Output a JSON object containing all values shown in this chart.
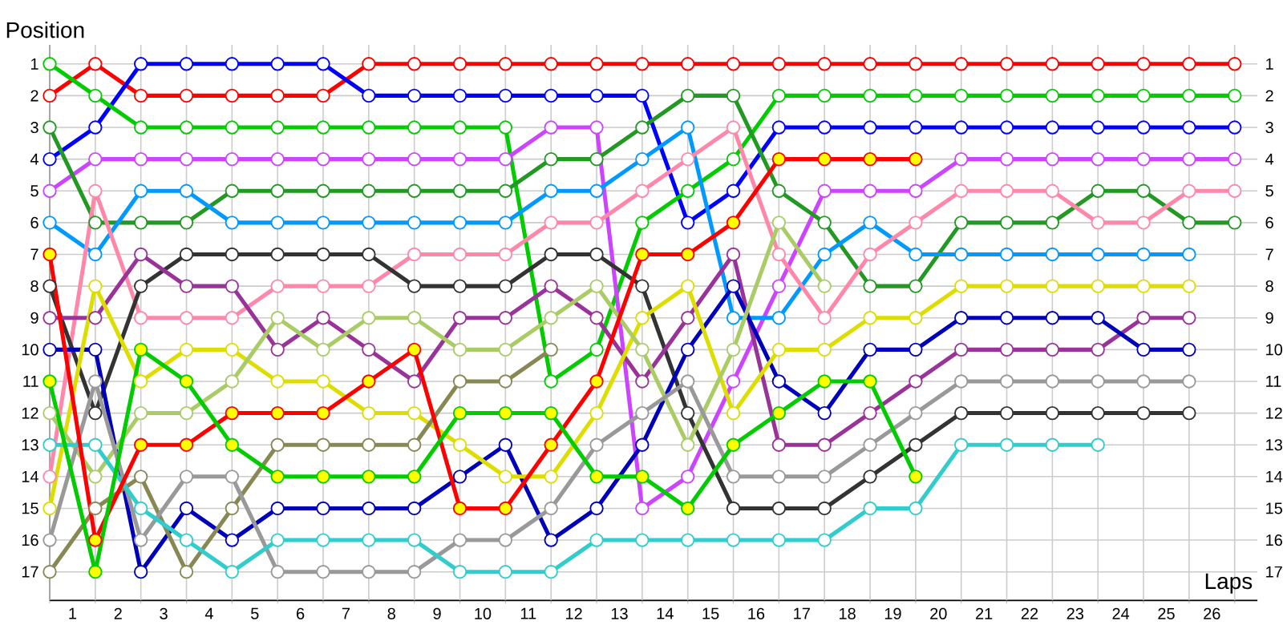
{
  "chart_data": {
    "type": "line",
    "xlabel": "Laps",
    "ylabel": "Position",
    "marker": "circle",
    "line_style": "solid",
    "grid": true,
    "x": [
      0,
      1,
      2,
      3,
      4,
      5,
      6,
      7,
      8,
      9,
      10,
      11,
      12,
      13,
      14,
      15,
      16,
      17,
      18,
      19,
      20,
      21,
      22,
      23,
      24,
      25,
      26
    ],
    "xlim": [
      0,
      26.5
    ],
    "xticks": [
      {
        "value": 0,
        "label": null
      },
      {
        "value": 0.5,
        "label": "1"
      },
      {
        "value": 1,
        "label": null
      },
      {
        "value": 1.5,
        "label": "2"
      },
      {
        "value": 2,
        "label": null
      },
      {
        "value": 2.5,
        "label": "3"
      },
      {
        "value": 3,
        "label": null
      },
      {
        "value": 3.5,
        "label": "4"
      },
      {
        "value": 4,
        "label": null
      },
      {
        "value": 4.5,
        "label": "5"
      },
      {
        "value": 5,
        "label": null
      },
      {
        "value": 5.5,
        "label": "6"
      },
      {
        "value": 6,
        "label": null
      },
      {
        "value": 6.5,
        "label": "7"
      },
      {
        "value": 7,
        "label": null
      },
      {
        "value": 7.5,
        "label": "8"
      },
      {
        "value": 8,
        "label": null
      },
      {
        "value": 8.5,
        "label": "9"
      },
      {
        "value": 9,
        "label": null
      },
      {
        "value": 9.5,
        "label": "10"
      },
      {
        "value": 10,
        "label": null
      },
      {
        "value": 10.5,
        "label": "11"
      },
      {
        "value": 11,
        "label": null
      },
      {
        "value": 11.5,
        "label": "12"
      },
      {
        "value": 12,
        "label": null
      },
      {
        "value": 12.5,
        "label": "13"
      },
      {
        "value": 13,
        "label": null
      },
      {
        "value": 13.5,
        "label": "14"
      },
      {
        "value": 14,
        "label": null
      },
      {
        "value": 14.5,
        "label": "15"
      },
      {
        "value": 15,
        "label": null
      },
      {
        "value": 15.5,
        "label": "16"
      },
      {
        "value": 16,
        "label": null
      },
      {
        "value": 16.5,
        "label": "17"
      },
      {
        "value": 17,
        "label": null
      },
      {
        "value": 17.5,
        "label": "18"
      },
      {
        "value": 18,
        "label": null
      },
      {
        "value": 18.5,
        "label": "19"
      },
      {
        "value": 19,
        "label": null
      },
      {
        "value": 19.5,
        "label": "20"
      },
      {
        "value": 20,
        "label": null
      },
      {
        "value": 20.5,
        "label": "21"
      },
      {
        "value": 21,
        "label": null
      },
      {
        "value": 21.5,
        "label": "22"
      },
      {
        "value": 22,
        "label": null
      },
      {
        "value": 22.5,
        "label": "23"
      },
      {
        "value": 23,
        "label": null
      },
      {
        "value": 23.5,
        "label": "24"
      },
      {
        "value": 24,
        "label": null
      },
      {
        "value": 24.5,
        "label": "25"
      },
      {
        "value": 25,
        "label": null
      },
      {
        "value": 25.5,
        "label": "26"
      },
      {
        "value": 26,
        "label": null
      }
    ],
    "ylim": [
      17.9,
      0.4
    ],
    "yticks": [
      1,
      2,
      3,
      4,
      5,
      6,
      7,
      8,
      9,
      10,
      11,
      12,
      13,
      14,
      15,
      16,
      17
    ],
    "y2lim": [
      17.9,
      0.4
    ],
    "y2ticks": [
      1,
      2,
      3,
      4,
      5,
      6,
      7,
      8,
      9,
      10,
      11,
      12,
      13,
      14,
      15,
      16,
      17
    ],
    "series": [
      {
        "color": "#ff0000",
        "values": [
          2,
          1,
          2,
          2,
          2,
          2,
          2,
          1,
          1,
          1,
          1,
          1,
          1,
          1,
          1,
          1,
          1,
          1,
          1,
          1,
          1,
          1,
          1,
          1,
          1,
          1,
          1
        ]
      },
      {
        "color": "#0000ff",
        "values": [
          4,
          3,
          1,
          1,
          1,
          1,
          1,
          2,
          2,
          2,
          2,
          2,
          2,
          2,
          6,
          5,
          3,
          3,
          3,
          3,
          3,
          3,
          3,
          3,
          3,
          3,
          3
        ]
      },
      {
        "color": "#00cc00",
        "values": [
          1,
          2,
          3,
          3,
          3,
          3,
          3,
          3,
          3,
          3,
          3,
          11,
          10,
          6,
          5,
          4,
          2,
          2,
          2,
          2,
          2,
          2,
          2,
          2,
          2,
          2,
          2
        ]
      },
      {
        "color": "#cc44ff",
        "values": [
          5,
          4,
          4,
          4,
          4,
          4,
          4,
          4,
          4,
          4,
          4,
          3,
          3,
          15,
          14,
          11,
          8,
          5,
          5,
          5,
          4,
          4,
          4,
          4,
          4,
          4,
          4
        ]
      },
      {
        "color": "#229922",
        "values": [
          3,
          6,
          6,
          6,
          5,
          5,
          5,
          5,
          5,
          5,
          5,
          4,
          4,
          3,
          2,
          2,
          5,
          6,
          8,
          8,
          6,
          6,
          6,
          5,
          5,
          6,
          6
        ]
      },
      {
        "color": "#0099ff",
        "values": [
          6,
          7,
          5,
          5,
          6,
          6,
          6,
          6,
          6,
          6,
          6,
          5,
          5,
          4,
          3,
          9,
          9,
          7,
          6,
          7,
          7,
          7,
          7,
          7,
          7,
          7,
          null
        ]
      },
      {
        "color": "#ff88aa",
        "values": [
          14,
          5,
          9,
          9,
          9,
          8,
          8,
          8,
          7,
          7,
          7,
          6,
          6,
          5,
          4,
          3,
          7,
          9,
          7,
          6,
          5,
          5,
          5,
          6,
          6,
          5,
          5
        ]
      },
      {
        "color": "#333333",
        "values": [
          8,
          12,
          8,
          7,
          7,
          7,
          7,
          7,
          8,
          8,
          8,
          7,
          7,
          8,
          12,
          15,
          15,
          15,
          14,
          13,
          12,
          12,
          12,
          12,
          12,
          12,
          null
        ]
      },
      {
        "color": "#993399",
        "values": [
          9,
          9,
          7,
          8,
          8,
          10,
          9,
          10,
          11,
          9,
          9,
          8,
          9,
          11,
          9,
          7,
          13,
          13,
          12,
          11,
          10,
          10,
          10,
          10,
          9,
          9,
          null
        ]
      },
      {
        "color": "#0000bb",
        "values": [
          10,
          10,
          17,
          15,
          16,
          15,
          15,
          15,
          15,
          14,
          13,
          16,
          15,
          13,
          10,
          8,
          11,
          12,
          10,
          10,
          9,
          9,
          9,
          9,
          10,
          10,
          null
        ]
      },
      {
        "color": "#dddd00",
        "values": [
          15,
          8,
          11,
          10,
          10,
          11,
          11,
          12,
          12,
          13,
          14,
          14,
          12,
          9,
          8,
          12,
          10,
          10,
          9,
          9,
          8,
          8,
          8,
          8,
          8,
          8,
          null
        ]
      },
      {
        "color": "#aacc66",
        "values": [
          12,
          14,
          12,
          12,
          11,
          9,
          10,
          9,
          9,
          10,
          10,
          9,
          8,
          10,
          13,
          10,
          6,
          8,
          null,
          null,
          null,
          null,
          null,
          null,
          null,
          null,
          null
        ]
      },
      {
        "color": "#888855",
        "values": [
          17,
          15,
          14,
          17,
          15,
          13,
          13,
          13,
          13,
          11,
          11,
          10,
          null,
          null,
          null,
          null,
          null,
          null,
          null,
          null,
          null,
          null,
          null,
          null,
          null,
          null,
          null
        ]
      },
      {
        "color": "#999999",
        "values": [
          16,
          11,
          16,
          14,
          14,
          17,
          17,
          17,
          17,
          16,
          16,
          15,
          13,
          12,
          11,
          14,
          14,
          14,
          13,
          12,
          11,
          11,
          11,
          11,
          11,
          11,
          null
        ]
      },
      {
        "color": "#33cccc",
        "values": [
          13,
          13,
          15,
          16,
          17,
          16,
          16,
          16,
          16,
          17,
          17,
          17,
          16,
          16,
          16,
          16,
          16,
          16,
          15,
          15,
          13,
          13,
          13,
          13,
          null,
          null,
          null
        ]
      },
      {
        "color": "#ff0000",
        "colors": [
          "#ffff00",
          "#ffff00",
          "#ffff00",
          "#ffff00",
          "#ffff00",
          "#ffff00",
          "#ffff00",
          "#ffff00",
          "#ffff00",
          "#ffff00",
          "#ffff00",
          "#ffff00",
          "#ffff00",
          "#ffff00",
          "#ffff00",
          "#ffff00",
          "#ffff00",
          "#ffff00",
          "#ffff00",
          "#ffff00",
          null,
          null,
          null,
          null,
          null,
          null,
          null
        ],
        "values": [
          7,
          16,
          13,
          13,
          12,
          12,
          12,
          11,
          10,
          15,
          15,
          13,
          11,
          7,
          7,
          6,
          4,
          4,
          4,
          4,
          null,
          null,
          null,
          null,
          null,
          null,
          null
        ]
      },
      {
        "color": "#00cc00",
        "colors": [
          "#ffff00",
          "#ffff00",
          "#ffff00",
          "#ffff00",
          "#ffff00",
          "#ffff00",
          "#ffff00",
          "#ffff00",
          "#ffff00",
          "#ffff00",
          "#ffff00",
          "#ffff00",
          "#ffff00",
          "#ffff00",
          "#ffff00",
          "#ffff00",
          "#ffff00",
          "#ffff00",
          "#ffff00",
          "#ffff00",
          null,
          null,
          null,
          null,
          null,
          null,
          null
        ],
        "values": [
          11,
          17,
          10,
          11,
          13,
          14,
          14,
          14,
          14,
          12,
          12,
          12,
          14,
          14,
          15,
          13,
          12,
          11,
          11,
          14,
          null,
          null,
          null,
          null,
          null,
          null,
          null
        ]
      }
    ]
  }
}
